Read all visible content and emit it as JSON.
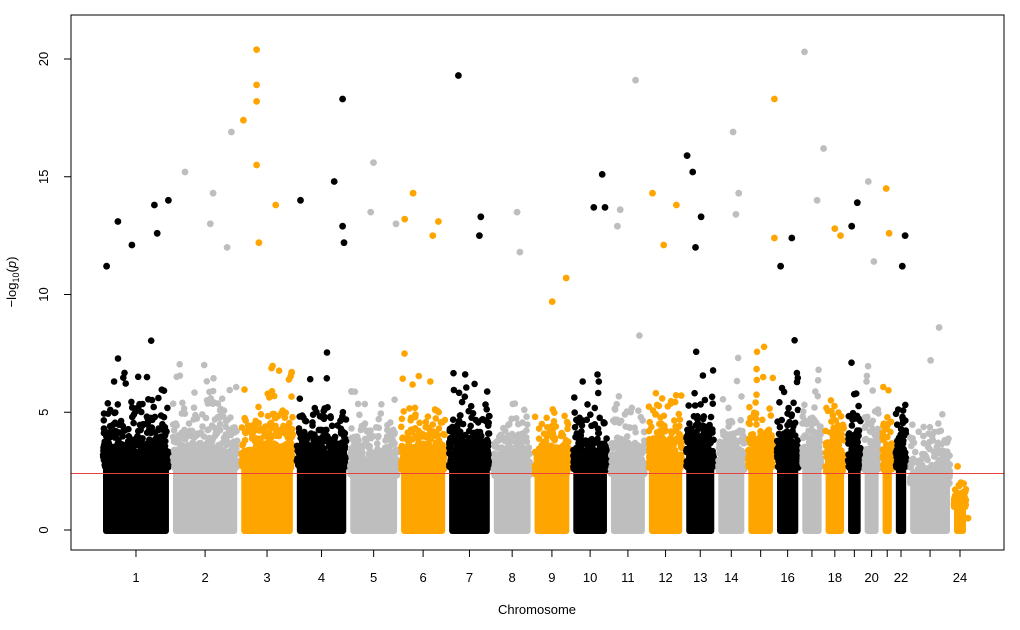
{
  "chart_data": {
    "type": "scatter",
    "title": "",
    "xlabel": "Chromosome",
    "ylabel": {
      "prefix": "−log",
      "sub": "10",
      "open": "(",
      "arg": "p",
      "close": ")"
    },
    "ylim": [
      0,
      21.5
    ],
    "yticks": [
      0,
      5,
      10,
      15,
      20
    ],
    "grid": false,
    "threshold": 2.4,
    "threshold_color": "#e8423f",
    "colors": [
      "#000000",
      "#bebebe",
      "#ffa500"
    ],
    "chromosomes": [
      {
        "chr": 1,
        "label": "1",
        "length": 249,
        "bg_scale": 1.55,
        "peaks": [
          [
            20,
            11.2
          ],
          [
            60,
            13.1
          ],
          [
            110,
            12.1
          ],
          [
            190,
            13.8
          ],
          [
            240,
            14.0
          ],
          [
            200,
            12.6
          ]
        ]
      },
      {
        "chr": 2,
        "label": "2",
        "length": 243,
        "bg_scale": 1.45,
        "peaks": [
          [
            50,
            15.2
          ],
          [
            150,
            14.3
          ],
          [
            140,
            13.0
          ],
          [
            215,
            16.9
          ],
          [
            200,
            12.0
          ]
        ]
      },
      {
        "chr": 3,
        "label": "3",
        "length": 198,
        "bg_scale": 1.55,
        "peaks": [
          [
            15,
            17.4
          ],
          [
            62,
            20.4
          ],
          [
            62,
            18.9
          ],
          [
            62,
            18.2
          ],
          [
            62,
            15.5
          ],
          [
            130,
            13.8
          ],
          [
            70,
            12.2
          ]
        ]
      },
      {
        "chr": 4,
        "label": "4",
        "length": 190,
        "bg_scale": 1.5,
        "peaks": [
          [
            20,
            14.0
          ],
          [
            140,
            14.8
          ],
          [
            170,
            18.3
          ],
          [
            170,
            12.9
          ],
          [
            175,
            12.2
          ]
        ]
      },
      {
        "chr": 5,
        "label": "5",
        "length": 181,
        "bg_scale": 1.3,
        "peaks": [
          [
            90,
            15.6
          ],
          [
            80,
            13.5
          ],
          [
            170,
            13.0
          ]
        ]
      },
      {
        "chr": 6,
        "label": "6",
        "length": 171,
        "bg_scale": 1.45,
        "peaks": [
          [
            50,
            14.3
          ],
          [
            20,
            13.2
          ],
          [
            140,
            13.1
          ],
          [
            120,
            12.5
          ]
        ]
      },
      {
        "chr": 7,
        "label": "7",
        "length": 159,
        "bg_scale": 1.55,
        "peaks": [
          [
            40,
            19.3
          ],
          [
            120,
            13.3
          ],
          [
            115,
            12.5
          ]
        ]
      },
      {
        "chr": 8,
        "label": "8",
        "length": 145,
        "bg_scale": 1.3,
        "peaks": [
          [
            90,
            13.5
          ],
          [
            100,
            11.8
          ]
        ]
      },
      {
        "chr": 9,
        "label": "9",
        "length": 138,
        "bg_scale": 1.3,
        "peaks": [
          [
            120,
            10.7
          ],
          [
            70,
            9.7
          ]
        ]
      },
      {
        "chr": 10,
        "label": "10",
        "length": 134,
        "bg_scale": 1.45,
        "peaks": [
          [
            110,
            15.1
          ],
          [
            80,
            13.7
          ],
          [
            120,
            13.7
          ]
        ]
      },
      {
        "chr": 11,
        "label": "11",
        "length": 135,
        "bg_scale": 1.35,
        "peaks": [
          [
            95,
            19.1
          ],
          [
            40,
            13.6
          ],
          [
            30,
            12.9
          ]
        ]
      },
      {
        "chr": 12,
        "label": "12",
        "length": 133,
        "bg_scale": 1.5,
        "peaks": [
          [
            20,
            14.3
          ],
          [
            105,
            13.8
          ],
          [
            60,
            12.1
          ]
        ]
      },
      {
        "chr": 13,
        "label": "13",
        "length": 114,
        "bg_scale": 1.5,
        "peaks": [
          [
            10,
            15.9
          ],
          [
            30,
            15.2
          ],
          [
            60,
            13.3
          ],
          [
            40,
            12.0
          ]
        ]
      },
      {
        "chr": 14,
        "label": "14",
        "length": 107,
        "bg_scale": 1.4,
        "peaks": [
          [
            60,
            16.9
          ],
          [
            80,
            14.3
          ],
          [
            70,
            13.4
          ]
        ]
      },
      {
        "chr": 15,
        "label": "",
        "length": 102,
        "bg_scale": 1.5,
        "peaks": [
          [
            100,
            18.3
          ],
          [
            100,
            12.4
          ]
        ]
      },
      {
        "chr": 16,
        "label": "16",
        "length": 90,
        "bg_scale": 1.55,
        "peaks": [
          [
            60,
            12.4
          ],
          [
            20,
            11.2
          ]
        ]
      },
      {
        "chr": 17,
        "label": "",
        "length": 83,
        "bg_scale": 1.5,
        "peaks": [
          [
            15,
            20.3
          ],
          [
            83,
            16.2
          ],
          [
            60,
            14.0
          ]
        ]
      },
      {
        "chr": 18,
        "label": "18",
        "length": 80,
        "bg_scale": 1.4,
        "peaks": [
          [
            40,
            12.8
          ],
          [
            60,
            12.5
          ]
        ]
      },
      {
        "chr": 19,
        "label": "",
        "length": 59,
        "bg_scale": 1.55,
        "peaks": [
          [
            40,
            13.9
          ],
          [
            20,
            12.9
          ]
        ]
      },
      {
        "chr": 20,
        "label": "20",
        "length": 64,
        "bg_scale": 1.45,
        "peaks": [
          [
            20,
            14.8
          ],
          [
            40,
            11.4
          ]
        ]
      },
      {
        "chr": 21,
        "label": "",
        "length": 47,
        "bg_scale": 1.45,
        "peaks": [
          [
            20,
            14.5
          ],
          [
            30,
            12.6
          ]
        ]
      },
      {
        "chr": 22,
        "label": "22",
        "length": 51,
        "bg_scale": 1.5,
        "peaks": [
          [
            40,
            12.5
          ],
          [
            30,
            11.2
          ]
        ]
      },
      {
        "chr": 23,
        "label": "",
        "length": 156,
        "bg_scale": 1.1,
        "peaks": [
          [
            110,
            8.6
          ],
          [
            80,
            7.2
          ]
        ]
      },
      {
        "chr": 24,
        "label": "24",
        "length": 57,
        "bg_scale": 0.55,
        "peaks": [
          [
            20,
            2.7
          ],
          [
            57,
            0.5
          ]
        ]
      }
    ]
  }
}
